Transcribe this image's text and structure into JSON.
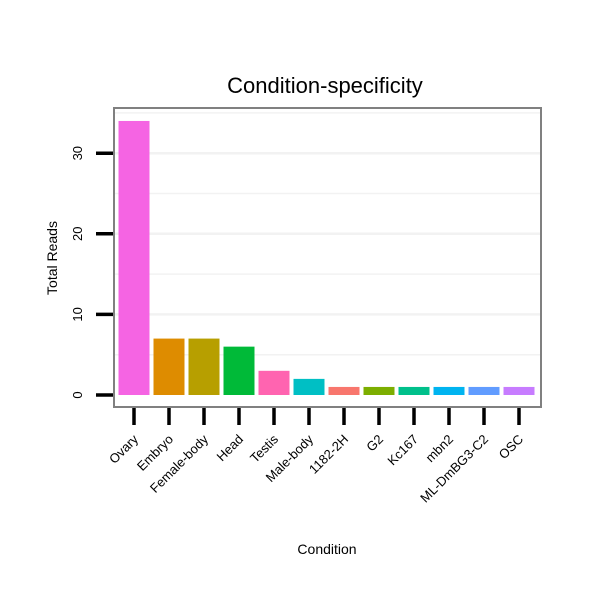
{
  "chart_data": {
    "type": "bar",
    "title": "Condition-specificity",
    "xlabel": "Condition",
    "ylabel": "Total Reads",
    "ylim": [
      0,
      35
    ],
    "yticks": [
      0,
      10,
      20,
      30
    ],
    "categories": [
      "Ovary",
      "Embryo",
      "Female-body",
      "Head",
      "Testis",
      "Male-body",
      "1182-2H",
      "G2",
      "Kc167",
      "mbn2",
      "ML-DmBG3-C2",
      "OSC"
    ],
    "values": [
      34,
      7,
      7,
      6,
      3,
      2,
      1,
      1,
      1,
      1,
      1,
      1
    ],
    "colors": [
      "#F564E3",
      "#DE8C00",
      "#B79F00",
      "#00BA38",
      "#FF64B0",
      "#00BFC4",
      "#F8766D",
      "#7CAE00",
      "#00C08B",
      "#00B4F0",
      "#619CFF",
      "#C77CFF"
    ],
    "grid": true,
    "legend": "none"
  }
}
